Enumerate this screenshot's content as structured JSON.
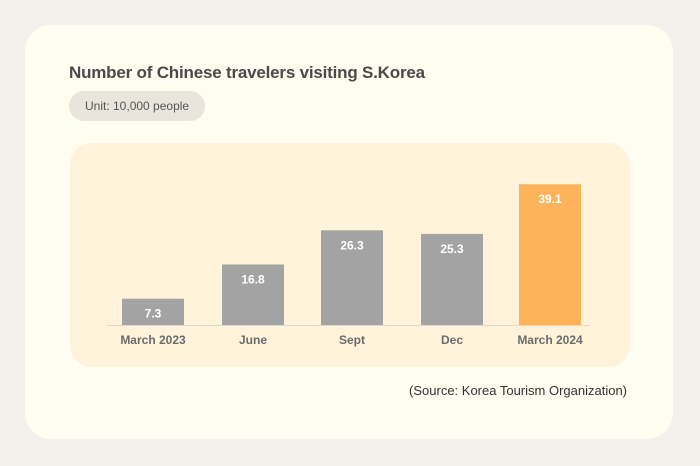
{
  "title": "Number of Chinese travelers visiting S.Korea",
  "unit": "Unit: 10,000 people",
  "source": "(Source: Korea Tourism Organization)",
  "colors": {
    "bar": "#a3a3a3",
    "highlight": "#fdb35a",
    "plot_bg": "#fff3db",
    "card": "#fffcf0"
  },
  "chart_data": {
    "type": "bar",
    "categories": [
      "March 2023",
      "June",
      "Sept",
      "Dec",
      "March 2024"
    ],
    "values": [
      7.3,
      16.8,
      26.3,
      25.3,
      39.1
    ],
    "highlight_index": 4,
    "title": "Number of Chinese travelers visiting S.Korea",
    "ylabel": "",
    "xlabel": "",
    "ylim": [
      0,
      40
    ],
    "grid": false,
    "legend": "none"
  }
}
